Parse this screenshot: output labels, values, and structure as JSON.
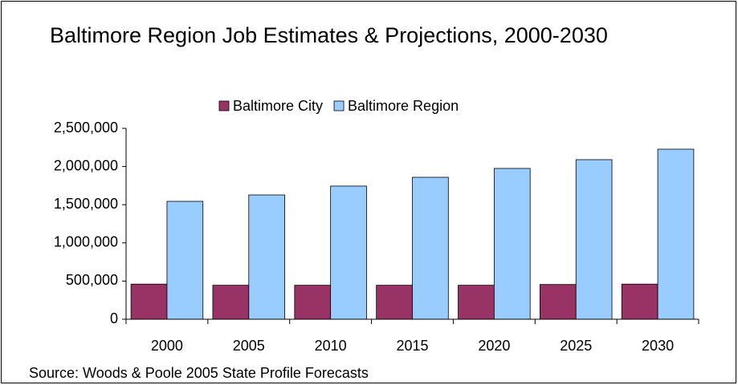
{
  "chart_data": {
    "type": "bar",
    "title": "Baltimore Region Job Estimates & Projections, 2000-2030",
    "source": "Source: Woods & Poole 2005 State Profile Forecasts",
    "categories": [
      "2000",
      "2005",
      "2010",
      "2015",
      "2020",
      "2025",
      "2030"
    ],
    "series": [
      {
        "name": "Baltimore City",
        "color": "#993366",
        "values": [
          460000,
          445000,
          445000,
          445000,
          445000,
          455000,
          460000
        ]
      },
      {
        "name": "Baltimore Region",
        "color": "#99ccff",
        "values": [
          1544000,
          1628000,
          1744000,
          1859000,
          1975000,
          2090000,
          2227000
        ]
      }
    ],
    "ylim": [
      0,
      2500000
    ],
    "yticks": [
      0,
      {
        "value": 500000,
        "label": "500,000"
      },
      {
        "value": 1000000,
        "label": "1,000,000"
      },
      {
        "value": 1500000,
        "label": "1,500,000"
      },
      {
        "value": 2000000,
        "label": "2,000,000"
      },
      {
        "value": 2500000,
        "label": "2,500,000"
      }
    ],
    "legend": "top",
    "grid": false
  }
}
